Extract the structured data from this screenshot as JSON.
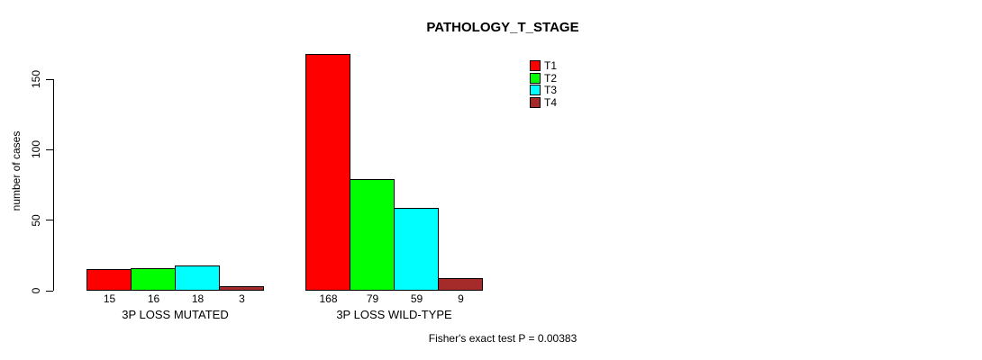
{
  "figure": {
    "background": "#FFFFFF",
    "text_color": "#000000",
    "axis_color": "#000000"
  },
  "chart_data": {
    "type": "bar",
    "title": "PATHOLOGY_T_STAGE",
    "ylabel": "number of cases",
    "xlabel": "",
    "categories": [
      "3P LOSS MUTATED",
      "3P LOSS WILD-TYPE"
    ],
    "series": [
      {
        "name": "T1",
        "color": "#FF0000",
        "values": [
          15,
          168
        ]
      },
      {
        "name": "T2",
        "color": "#00FF00",
        "values": [
          16,
          79
        ]
      },
      {
        "name": "T3",
        "color": "#00FFFF",
        "values": [
          18,
          59
        ]
      },
      {
        "name": "T4",
        "color": "#A52A2A",
        "values": [
          3,
          9
        ]
      }
    ],
    "yticks": [
      0,
      50,
      100,
      150
    ],
    "ylim": [
      0,
      175
    ],
    "grid": false,
    "bar_value_labels": true,
    "legend": {
      "position": "top-right-inside",
      "entries": [
        "T1",
        "T2",
        "T3",
        "T4"
      ]
    },
    "annotation": "Fisher's exact test P = 0.00383"
  }
}
